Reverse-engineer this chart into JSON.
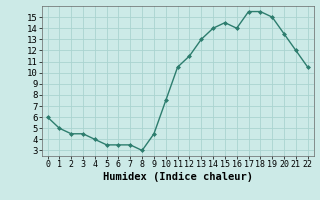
{
  "x": [
    0,
    1,
    2,
    3,
    4,
    5,
    6,
    7,
    8,
    9,
    10,
    11,
    12,
    13,
    14,
    15,
    16,
    17,
    18,
    19,
    20,
    21,
    22
  ],
  "y": [
    6,
    5,
    4.5,
    4.5,
    4,
    3.5,
    3.5,
    3.5,
    3,
    4.5,
    7.5,
    10.5,
    11.5,
    13,
    14,
    14.5,
    14,
    15.5,
    15.5,
    15,
    13.5,
    12,
    10.5
  ],
  "line_color": "#2d7d6e",
  "marker": "D",
  "bg_color": "#cceae7",
  "grid_color": "#aad4d0",
  "xlabel": "Humidex (Indice chaleur)",
  "xlim": [
    -0.5,
    22.5
  ],
  "ylim": [
    2.5,
    16
  ],
  "yticks": [
    3,
    4,
    5,
    6,
    7,
    8,
    9,
    10,
    11,
    12,
    13,
    14,
    15
  ],
  "xticks": [
    0,
    1,
    2,
    3,
    4,
    5,
    6,
    7,
    8,
    9,
    10,
    11,
    12,
    13,
    14,
    15,
    16,
    17,
    18,
    19,
    20,
    21,
    22
  ],
  "tick_fontsize": 6.5,
  "label_fontsize": 7.5
}
